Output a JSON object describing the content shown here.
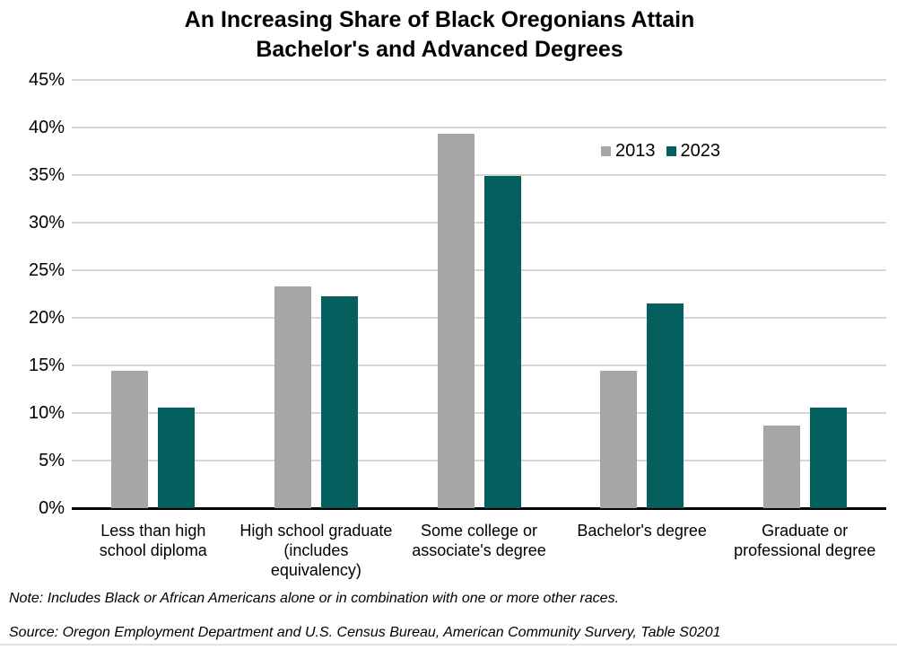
{
  "chart_data": {
    "type": "bar",
    "title": "An Increasing Share of Black Oregonians Attain Bachelor's and Advanced Degrees",
    "title_lines": [
      "An Increasing Share of Black Oregonians Attain",
      "Bachelor's and Advanced Degrees"
    ],
    "categories": [
      "Less than high school diploma",
      "High school graduate (includes equivalency)",
      "Some college or associate's degree",
      "Bachelor's degree",
      "Graduate or professional degree"
    ],
    "categories_display": [
      "Less than high\nschool diploma",
      "High school graduate\n(includes\nequivalency)",
      "Some college or\nassociate's degree",
      "Bachelor's degree",
      "Graduate or\nprofessional degree"
    ],
    "series": [
      {
        "name": "2013",
        "color": "#A6A6A6",
        "values": [
          14.4,
          23.3,
          39.3,
          14.4,
          8.7
        ]
      },
      {
        "name": "2023",
        "color": "#045F5E",
        "values": [
          10.6,
          22.3,
          34.9,
          21.5,
          10.6
        ]
      }
    ],
    "xlabel": "",
    "ylabel": "",
    "ylim": [
      0,
      45
    ],
    "y_tick_labels": [
      "45%",
      "40%",
      "35%",
      "30%",
      "25%",
      "20%",
      "15%",
      "10%",
      "5%",
      "0%"
    ],
    "grid": true,
    "legend": {
      "position": "inside-top-right",
      "entries": [
        "2013",
        "2023"
      ]
    }
  },
  "notes": {
    "note": "Note: Includes Black or African Americans alone or in combination with one or more other races.",
    "source": "Source: Oregon Employment Department and U.S. Census Bureau, American Community Survery, Table S0201"
  },
  "colors": {
    "background": "#FFFFFF",
    "gridline": "#D6D6D6",
    "axis_line": "#000000",
    "text": "#000000",
    "series_2013": "#A6A6A6",
    "series_2023": "#045F5E"
  }
}
